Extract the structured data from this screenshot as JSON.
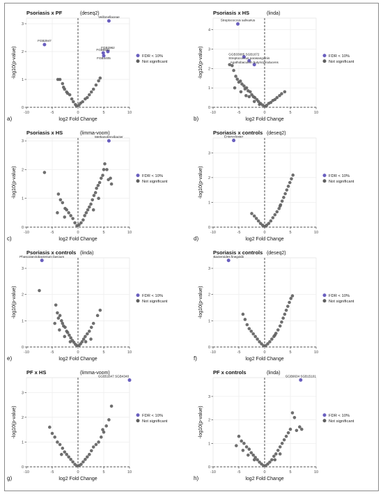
{
  "colors": {
    "significant": "#6a5fbf",
    "not_significant": "#5f5f5f",
    "grid": "#ebebeb",
    "axis": "#333333"
  },
  "legend": {
    "significant": "FDR < 10%",
    "not_significant": "Not significant"
  },
  "chart_data": [
    {
      "type": "scatter",
      "panel_label": "a)",
      "title": "Psoriasis x PF",
      "method": "(deseq2)",
      "xlabel": "log2 Fold Change",
      "ylabel": "-log10(p-value)",
      "xlim": [
        -10,
        10
      ],
      "ylim": [
        0,
        3.2
      ],
      "xticks": [
        -10,
        -5,
        0,
        5,
        10
      ],
      "yticks": [
        0,
        1,
        2,
        3
      ],
      "significant": [
        {
          "x": 6.0,
          "y": 3.1,
          "label": "Veillonellaceae"
        },
        {
          "x": -6.5,
          "y": 2.25,
          "label": "FGB2947"
        },
        {
          "x": 5.8,
          "y": 2.0,
          "label": "FGB2962"
        },
        {
          "x": 4.9,
          "y": 1.95,
          "label": "FGB8581"
        },
        {
          "x": 5.0,
          "y": 1.85,
          "label": "FGB4405"
        }
      ],
      "not_significant": [
        [
          -3.9,
          1.0
        ],
        [
          -3.5,
          1.0
        ],
        [
          -3.0,
          0.85
        ],
        [
          -2.8,
          0.72
        ],
        [
          -2.6,
          0.65
        ],
        [
          -2.2,
          0.55
        ],
        [
          -2.0,
          0.5
        ],
        [
          -1.6,
          0.45
        ],
        [
          -0.9,
          0.2
        ],
        [
          -0.5,
          0.1
        ],
        [
          -0.3,
          0.05
        ],
        [
          0.2,
          0.08
        ],
        [
          0.5,
          0.15
        ],
        [
          0.9,
          0.2
        ],
        [
          1.4,
          0.3
        ],
        [
          1.8,
          0.35
        ],
        [
          2.2,
          0.45
        ],
        [
          2.6,
          0.55
        ],
        [
          3.0,
          0.65
        ],
        [
          3.5,
          0.8
        ],
        [
          4.0,
          0.95
        ],
        [
          4.3,
          1.05
        ],
        [
          -1.2,
          0.3
        ]
      ]
    },
    {
      "type": "scatter",
      "panel_label": "b)",
      "title": "Psoriasis x HS",
      "method": "(linda)",
      "xlabel": "log2 Fold Change",
      "ylabel": "-log10(p-value)",
      "xlim": [
        -10,
        10
      ],
      "ylim": [
        0,
        4.6
      ],
      "xticks": [
        -10,
        -5,
        0,
        5,
        10
      ],
      "yticks": [
        0,
        1,
        2,
        3,
        4
      ],
      "significant": [
        {
          "x": -5.2,
          "y": 4.3,
          "label": "Streptococcus salivarius"
        },
        {
          "x": -4.0,
          "y": 2.6,
          "label": "GGB33085 SGB1672"
        },
        {
          "x": -3.0,
          "y": 2.4,
          "label": "Streptococcus parasanguinis"
        },
        {
          "x": -2.0,
          "y": 2.2,
          "label": "Agathobaculum butyriciproducens"
        }
      ],
      "not_significant": [
        [
          -6.8,
          2.2
        ],
        [
          -6.3,
          2.15
        ],
        [
          -6.0,
          1.9
        ],
        [
          -5.6,
          1.6
        ],
        [
          -5.3,
          1.45
        ],
        [
          -5.0,
          1.3
        ],
        [
          -4.7,
          1.35
        ],
        [
          -4.4,
          1.2
        ],
        [
          -4.0,
          1.1
        ],
        [
          -3.8,
          0.95
        ],
        [
          -3.5,
          1.0
        ],
        [
          -3.2,
          0.85
        ],
        [
          -2.8,
          0.8
        ],
        [
          -2.5,
          0.65
        ],
        [
          -2.2,
          0.55
        ],
        [
          -1.9,
          0.5
        ],
        [
          -1.5,
          0.4
        ],
        [
          -1.2,
          0.3
        ],
        [
          -0.8,
          0.2
        ],
        [
          -0.4,
          0.12
        ],
        [
          0.0,
          0.05
        ],
        [
          0.4,
          0.1
        ],
        [
          0.8,
          0.2
        ],
        [
          1.2,
          0.25
        ],
        [
          1.6,
          0.35
        ],
        [
          2.0,
          0.4
        ],
        [
          2.4,
          0.5
        ],
        [
          2.9,
          0.6
        ],
        [
          3.3,
          0.7
        ],
        [
          3.9,
          0.8
        ],
        [
          -5.8,
          1.0
        ],
        [
          -4.6,
          0.8
        ],
        [
          -3.6,
          0.6
        ],
        [
          -3.0,
          0.55
        ],
        [
          -2.0,
          0.3
        ],
        [
          -1.0,
          0.15
        ]
      ]
    },
    {
      "type": "scatter",
      "panel_label": "c)",
      "title": "Psoriasis x HS",
      "method": "(limma-voom)",
      "xlabel": "log2 Fold Change",
      "ylabel": "-log10(p-value)",
      "xlim": [
        -10,
        10
      ],
      "ylim": [
        0,
        3.1
      ],
      "xticks": [
        -10,
        -5,
        0,
        5,
        10
      ],
      "yticks": [
        0,
        1,
        2,
        3
      ],
      "significant": [
        {
          "x": 6.0,
          "y": 3.0,
          "label": "Methanobrevibacter"
        }
      ],
      "not_significant": [
        [
          -6.5,
          1.9
        ],
        [
          -3.8,
          1.15
        ],
        [
          -3.4,
          0.95
        ],
        [
          -3.0,
          0.85
        ],
        [
          -2.5,
          0.65
        ],
        [
          -2.2,
          0.6
        ],
        [
          -1.8,
          0.5
        ],
        [
          -1.4,
          0.4
        ],
        [
          -1.0,
          0.3
        ],
        [
          -0.6,
          0.15
        ],
        [
          -0.2,
          0.05
        ],
        [
          0.2,
          0.08
        ],
        [
          0.6,
          0.15
        ],
        [
          1.0,
          0.25
        ],
        [
          1.3,
          0.4
        ],
        [
          1.6,
          0.5
        ],
        [
          1.9,
          0.6
        ],
        [
          2.2,
          0.7
        ],
        [
          2.5,
          0.8
        ],
        [
          2.8,
          0.95
        ],
        [
          3.1,
          1.1
        ],
        [
          3.4,
          1.2
        ],
        [
          3.6,
          1.35
        ],
        [
          3.9,
          1.45
        ],
        [
          4.2,
          1.55
        ],
        [
          4.5,
          1.7
        ],
        [
          4.8,
          1.8
        ],
        [
          5.0,
          2.0
        ],
        [
          5.2,
          2.2
        ],
        [
          5.6,
          2.0
        ],
        [
          5.9,
          1.65
        ],
        [
          6.3,
          1.7
        ],
        [
          6.5,
          1.5
        ],
        [
          4.0,
          1.0
        ],
        [
          3.0,
          0.6
        ],
        [
          -2.6,
          0.35
        ],
        [
          -4.0,
          0.5
        ]
      ]
    },
    {
      "type": "scatter",
      "panel_label": "d)",
      "title": "Psoriasis x controls",
      "method": "(deseq2)",
      "xlabel": "log2 Fold Change",
      "ylabel": "-log10(p-value)",
      "xlim": [
        -10,
        10
      ],
      "ylim": [
        0,
        3.6
      ],
      "xticks": [
        -10,
        -5,
        0,
        5,
        10
      ],
      "yticks": [
        0,
        1,
        2,
        3
      ],
      "significant": [
        {
          "x": -6.0,
          "y": 3.5,
          "label": "Enterocloster"
        }
      ],
      "not_significant": [
        [
          -2.5,
          0.55
        ],
        [
          -2.0,
          0.45
        ],
        [
          -1.6,
          0.35
        ],
        [
          -1.2,
          0.25
        ],
        [
          -0.8,
          0.15
        ],
        [
          -0.4,
          0.08
        ],
        [
          0.0,
          0.03
        ],
        [
          0.4,
          0.08
        ],
        [
          0.8,
          0.15
        ],
        [
          1.2,
          0.25
        ],
        [
          1.6,
          0.38
        ],
        [
          2.0,
          0.5
        ],
        [
          2.4,
          0.62
        ],
        [
          2.8,
          0.75
        ],
        [
          3.1,
          0.9
        ],
        [
          3.4,
          1.05
        ],
        [
          3.7,
          1.2
        ],
        [
          4.0,
          1.35
        ],
        [
          4.3,
          1.5
        ],
        [
          4.6,
          1.65
        ],
        [
          4.9,
          1.8
        ],
        [
          5.2,
          1.95
        ],
        [
          5.5,
          2.1
        ],
        [
          3.0,
          0.85
        ]
      ]
    },
    {
      "type": "scatter",
      "panel_label": "e)",
      "title": "Psoriasis x controls",
      "method": "(linda)",
      "xlabel": "log2 Fold Change",
      "ylabel": "-log10(p-value)",
      "xlim": [
        -10,
        10
      ],
      "ylim": [
        0,
        3.4
      ],
      "xticks": [
        -10,
        -5,
        0,
        5,
        10
      ],
      "yticks": [
        0,
        1,
        2,
        3
      ],
      "significant": [
        {
          "x": -7.0,
          "y": 3.3,
          "label": "Phascolarctobacterium faecium"
        }
      ],
      "not_significant": [
        [
          -7.5,
          2.15
        ],
        [
          -4.3,
          1.6
        ],
        [
          -4.0,
          1.3
        ],
        [
          -3.8,
          1.1
        ],
        [
          -3.5,
          1.2
        ],
        [
          -3.2,
          1.0
        ],
        [
          -3.0,
          0.9
        ],
        [
          -2.8,
          0.8
        ],
        [
          -2.5,
          0.75
        ],
        [
          -2.2,
          0.6
        ],
        [
          -2.0,
          0.55
        ],
        [
          -1.7,
          0.45
        ],
        [
          -1.4,
          0.35
        ],
        [
          -1.1,
          0.25
        ],
        [
          -0.8,
          0.18
        ],
        [
          -0.5,
          0.1
        ],
        [
          -0.2,
          0.05
        ],
        [
          0.2,
          0.06
        ],
        [
          0.5,
          0.12
        ],
        [
          0.8,
          0.2
        ],
        [
          1.1,
          0.3
        ],
        [
          1.4,
          0.4
        ],
        [
          1.8,
          0.5
        ],
        [
          2.2,
          0.6
        ],
        [
          2.6,
          0.75
        ],
        [
          3.0,
          0.9
        ],
        [
          3.8,
          1.2
        ],
        [
          4.3,
          1.4
        ],
        [
          -4.5,
          0.9
        ],
        [
          -3.6,
          0.65
        ],
        [
          -2.6,
          0.4
        ],
        [
          -1.5,
          0.2
        ],
        [
          1.5,
          0.2
        ],
        [
          2.5,
          0.3
        ]
      ]
    },
    {
      "type": "scatter",
      "panel_label": "f)",
      "title": "Psoriasis x controls",
      "method": "(deseq2)",
      "xlabel": "log2 Fold Change",
      "ylabel": "-log10(p-value)",
      "xlim": [
        -10,
        10
      ],
      "ylim": [
        0,
        3.4
      ],
      "xticks": [
        -10,
        -5,
        0,
        5,
        10
      ],
      "yticks": [
        0,
        1,
        2,
        3
      ],
      "significant": [
        {
          "x": -7.0,
          "y": 3.3,
          "label": "Bacteroides finegoldii"
        }
      ],
      "not_significant": [
        [
          -4.2,
          1.25
        ],
        [
          -3.8,
          1.05
        ],
        [
          -3.4,
          0.85
        ],
        [
          -3.0,
          0.7
        ],
        [
          -2.6,
          0.6
        ],
        [
          -2.2,
          0.5
        ],
        [
          -1.8,
          0.4
        ],
        [
          -1.4,
          0.3
        ],
        [
          -1.0,
          0.2
        ],
        [
          -0.6,
          0.12
        ],
        [
          -0.2,
          0.05
        ],
        [
          0.2,
          0.05
        ],
        [
          0.6,
          0.12
        ],
        [
          1.0,
          0.2
        ],
        [
          1.4,
          0.3
        ],
        [
          1.8,
          0.4
        ],
        [
          2.2,
          0.52
        ],
        [
          2.6,
          0.65
        ],
        [
          3.0,
          0.8
        ],
        [
          3.3,
          0.95
        ],
        [
          3.6,
          1.1
        ],
        [
          3.9,
          1.25
        ],
        [
          4.2,
          1.4
        ],
        [
          4.5,
          1.55
        ],
        [
          4.8,
          1.7
        ],
        [
          5.1,
          1.85
        ],
        [
          5.4,
          1.95
        ],
        [
          2.0,
          0.45
        ]
      ]
    },
    {
      "type": "scatter",
      "panel_label": "g)",
      "title": "PF x HS",
      "method": "(limma-voom)",
      "xlabel": "log2 Fold Change",
      "ylabel": "-log10(p-value)",
      "xlim": [
        -10,
        10
      ],
      "ylim": [
        0,
        3.6
      ],
      "xticks": [
        -10,
        -5,
        0,
        5,
        10
      ],
      "yticks": [
        0,
        1,
        2,
        3
      ],
      "significant": [
        {
          "x": 10.0,
          "y": 3.5,
          "label": "GGB51647 SGB4348"
        }
      ],
      "not_significant": [
        [
          -5.5,
          1.6
        ],
        [
          -5.0,
          1.35
        ],
        [
          -4.5,
          1.2
        ],
        [
          -4.0,
          1.0
        ],
        [
          -3.5,
          0.9
        ],
        [
          -3.0,
          0.75
        ],
        [
          -2.6,
          0.6
        ],
        [
          -2.2,
          0.5
        ],
        [
          -1.8,
          0.4
        ],
        [
          -1.4,
          0.3
        ],
        [
          -1.0,
          0.2
        ],
        [
          -0.6,
          0.1
        ],
        [
          -0.2,
          0.04
        ],
        [
          0.2,
          0.05
        ],
        [
          0.6,
          0.1
        ],
        [
          1.0,
          0.2
        ],
        [
          1.4,
          0.3
        ],
        [
          1.8,
          0.4
        ],
        [
          2.2,
          0.5
        ],
        [
          2.6,
          0.65
        ],
        [
          3.0,
          0.8
        ],
        [
          3.5,
          0.9
        ],
        [
          4.0,
          1.0
        ],
        [
          4.5,
          1.2
        ],
        [
          5.0,
          1.4
        ],
        [
          5.5,
          1.65
        ],
        [
          6.0,
          1.9
        ],
        [
          6.5,
          2.45
        ],
        [
          4.8,
          1.5
        ],
        [
          -3.2,
          0.5
        ]
      ]
    },
    {
      "type": "scatter",
      "panel_label": "h)",
      "title": "PF x controls",
      "method": "(linda)",
      "xlabel": "log2 Fold Change",
      "ylabel": "-log10(p-value)",
      "xlim": [
        -10,
        10
      ],
      "ylim": [
        0,
        3.8
      ],
      "xticks": [
        -10,
        -5,
        0,
        5,
        10
      ],
      "yticks": [
        0,
        1,
        2,
        3
      ],
      "significant": [
        {
          "x": 7.0,
          "y": 3.7,
          "label": "GGB9634 SGB15101"
        }
      ],
      "not_significant": [
        [
          -5.0,
          1.3
        ],
        [
          -4.5,
          1.1
        ],
        [
          -4.0,
          1.0
        ],
        [
          -3.5,
          0.85
        ],
        [
          -3.0,
          0.75
        ],
        [
          -2.6,
          0.6
        ],
        [
          -2.2,
          0.5
        ],
        [
          -1.8,
          0.4
        ],
        [
          -1.4,
          0.3
        ],
        [
          -1.0,
          0.2
        ],
        [
          -0.6,
          0.12
        ],
        [
          -0.2,
          0.05
        ],
        [
          0.2,
          0.05
        ],
        [
          0.6,
          0.12
        ],
        [
          1.0,
          0.2
        ],
        [
          1.4,
          0.3
        ],
        [
          1.8,
          0.45
        ],
        [
          2.2,
          0.55
        ],
        [
          2.6,
          0.7
        ],
        [
          3.0,
          0.85
        ],
        [
          3.4,
          1.0
        ],
        [
          3.8,
          1.15
        ],
        [
          4.2,
          1.3
        ],
        [
          4.6,
          1.45
        ],
        [
          5.0,
          1.6
        ],
        [
          5.4,
          2.3
        ],
        [
          5.8,
          2.1
        ],
        [
          6.2,
          1.55
        ],
        [
          6.8,
          1.7
        ],
        [
          7.2,
          1.6
        ],
        [
          -5.5,
          0.9
        ],
        [
          -4.2,
          0.7
        ],
        [
          -3.2,
          0.5
        ],
        [
          -2.0,
          0.3
        ],
        [
          2.0,
          0.3
        ],
        [
          3.0,
          0.55
        ]
      ]
    }
  ]
}
